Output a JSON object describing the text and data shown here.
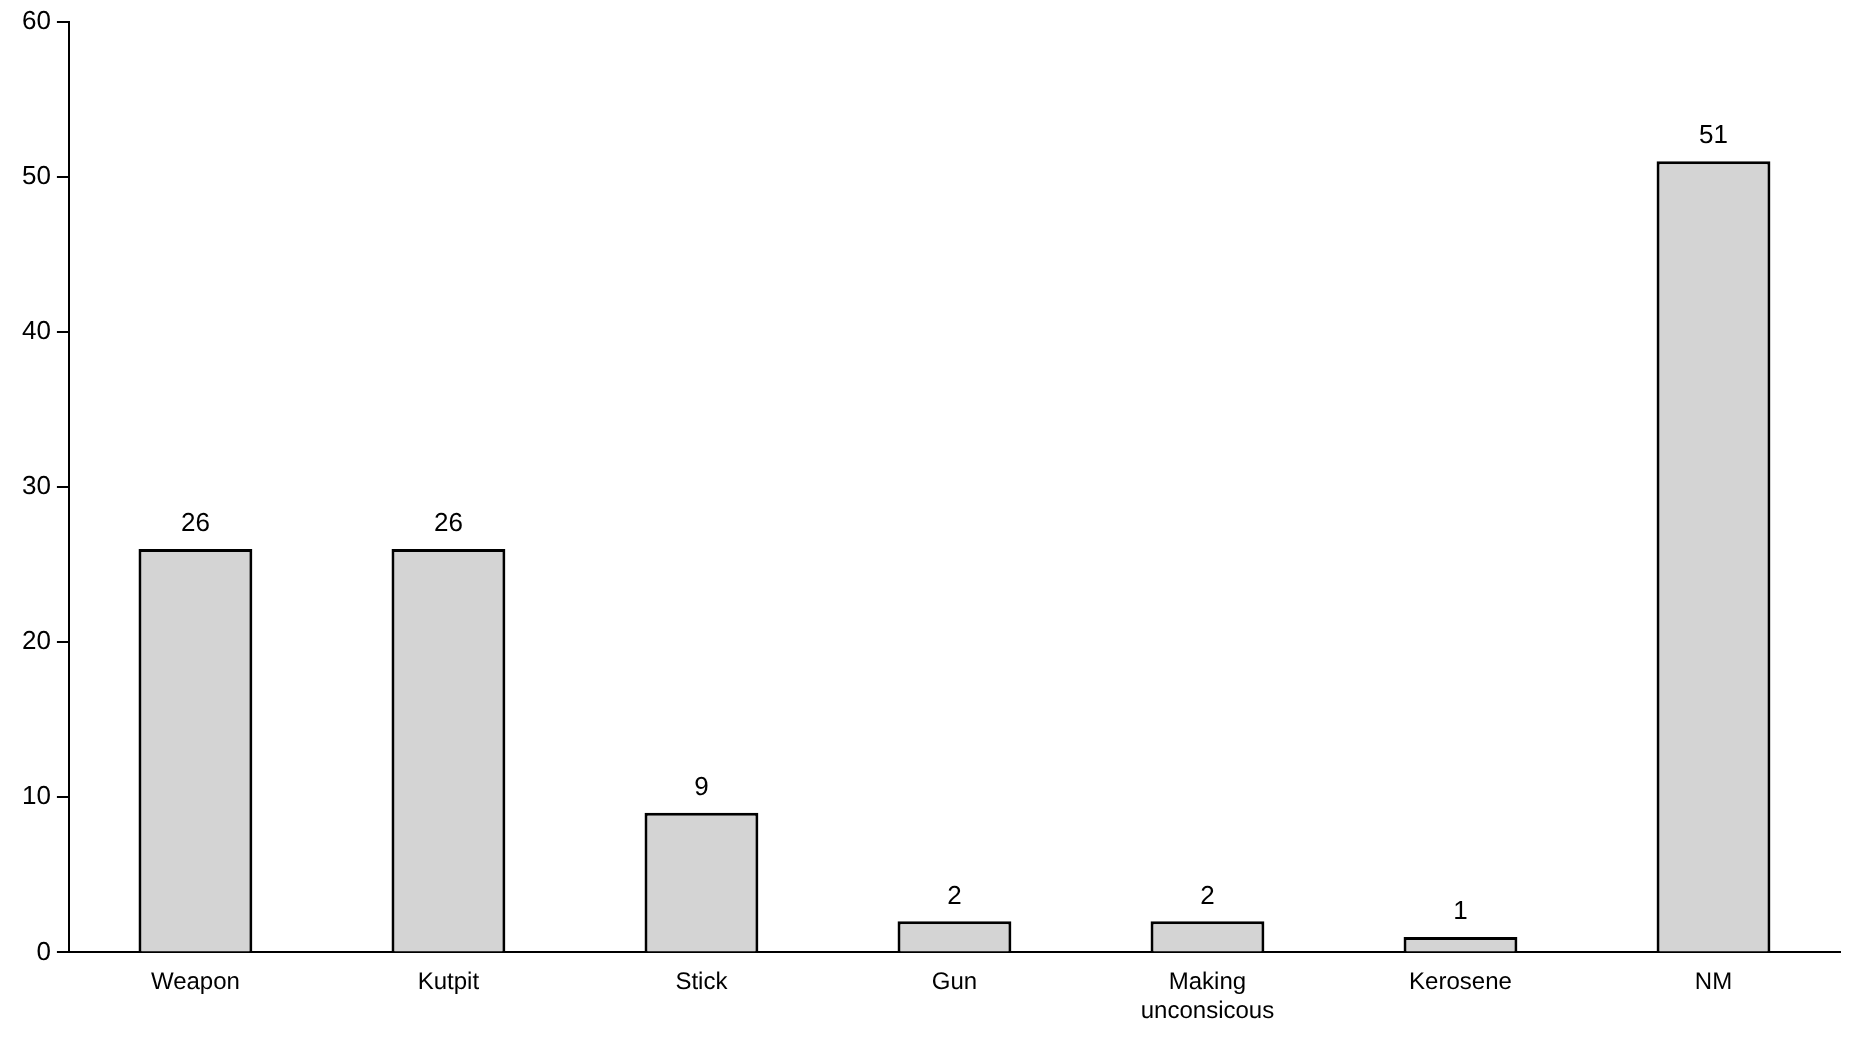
{
  "chart_data": {
    "type": "bar",
    "categories": [
      "Weapon",
      "Kutpit",
      "Stick",
      "Gun",
      "Making unconsicous",
      "Kerosene",
      "NM"
    ],
    "values": [
      26,
      26,
      9,
      2,
      2,
      1,
      51
    ],
    "color": "#d4d4d4",
    "ylim": [
      0,
      60
    ],
    "yticks": [
      0,
      10,
      20,
      30,
      40,
      50,
      60
    ],
    "data_labels": true
  }
}
